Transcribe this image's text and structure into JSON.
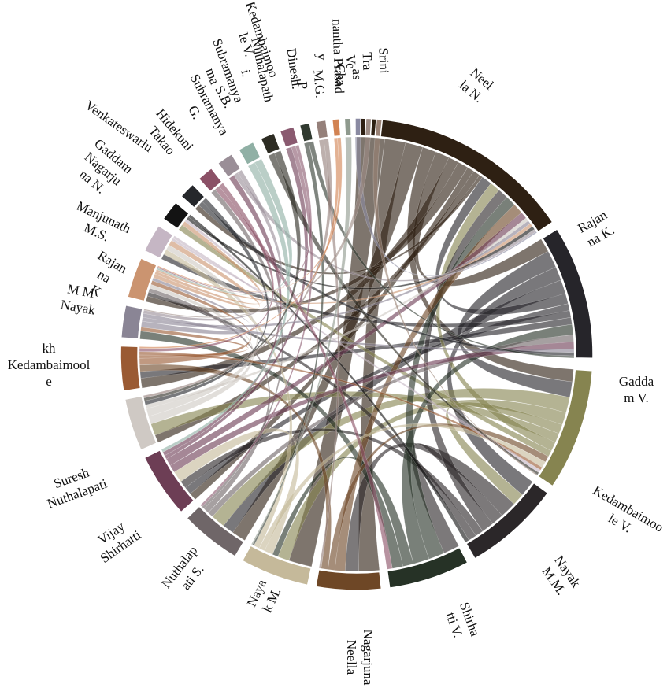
{
  "chart_data": {
    "type": "chord",
    "groups": [
      {
        "id": "neel",
        "label": [
          "Neel",
          "la N."
        ],
        "color": "#2e2013"
      },
      {
        "id": "rajan",
        "label": [
          "Rajan",
          "na K."
        ],
        "color": "#26252a"
      },
      {
        "id": "gadda",
        "label": [
          "Gadda",
          "m V."
        ],
        "color": "#868450"
      },
      {
        "id": "kedl",
        "label": [
          "Kedambaimoo",
          "le V."
        ],
        "color": "#2b2729"
      },
      {
        "id": "nayakm",
        "label": [
          "Nayak",
          "M.M."
        ],
        "color": "#263226"
      },
      {
        "id": "shirha",
        "label": [
          "Shirha",
          "tti V."
        ],
        "color": "#6e4726"
      },
      {
        "id": "nagneel",
        "label": [
          "Nagarjuna",
          "Neella"
        ],
        "color": "#c5b99a"
      },
      {
        "id": "nayakk",
        "label": [
          "Naya",
          "k M."
        ],
        "color": "#6f6668"
      },
      {
        "id": "nuth",
        "label": [
          "Nuthalap",
          "ati S."
        ],
        "color": "#6d3e55"
      },
      {
        "id": "vijay",
        "label": [
          "Vijay",
          "Shirhatti"
        ],
        "color": "#cfc9c4"
      },
      {
        "id": "suresh",
        "label": [
          "Suresh",
          "Nuthalapati"
        ],
        "color": "#9a5a33"
      },
      {
        "id": "s12",
        "label": [
          ""
        ],
        "color": "#8a8595"
      },
      {
        "id": "kedkh",
        "label": [
          "kh",
          "Kedambaimool",
          "e"
        ],
        "color": "#cb9470"
      },
      {
        "id": "mmn",
        "label": [
          "M M",
          "Nayak"
        ],
        "color": "#c5b6c4"
      },
      {
        "id": "rajk",
        "label": [
          "Rajan",
          "na",
          "K"
        ],
        "color": "#131313"
      },
      {
        "id": "manj",
        "label": [
          "Manjunath",
          "M.S."
        ],
        "color": "#25272b"
      },
      {
        "id": "gadn",
        "label": [
          "Gaddam",
          "Nagarju",
          "na N."
        ],
        "color": "#8b5066"
      },
      {
        "id": "venk",
        "label": [
          "Venkateswarlu"
        ],
        "color": "#9a8e97"
      },
      {
        "id": "hide",
        "label": [
          "Hidekuni",
          "Takao"
        ],
        "color": "#90b0a5"
      },
      {
        "id": "subsb",
        "label": [
          "S.B.",
          "Subramanya",
          "G."
        ],
        "color": "#2d2c23"
      },
      {
        "id": "subma",
        "label": [
          "Subramanya",
          "ma"
        ],
        "color": "#8a5a70"
      },
      {
        "id": "kedv2",
        "label": [
          "Kedambaimoo",
          "le V."
        ],
        "color": "#313a30"
      },
      {
        "id": "nuthal2",
        "label": [
          "Nuthalapath",
          "i."
        ],
        "color": "#95807a"
      },
      {
        "id": "dinesh",
        "label": [
          "Dinesh."
        ],
        "color": "#d28352"
      },
      {
        "id": "mgp",
        "label": [
          "M.G.",
          "P"
        ],
        "color": "#8f9a8e"
      },
      {
        "id": "anan",
        "label": [
          "nantha Prasad",
          "y"
        ],
        "color": "#8a8aa2"
      },
      {
        "id": "asc",
        "label": [
          "as",
          "Cha"
        ],
        "color": "#9e8d86"
      },
      {
        "id": "sri",
        "label": [
          "Srini",
          "Tra",
          "Ve"
        ],
        "color": "#9a8275"
      }
    ]
  }
}
